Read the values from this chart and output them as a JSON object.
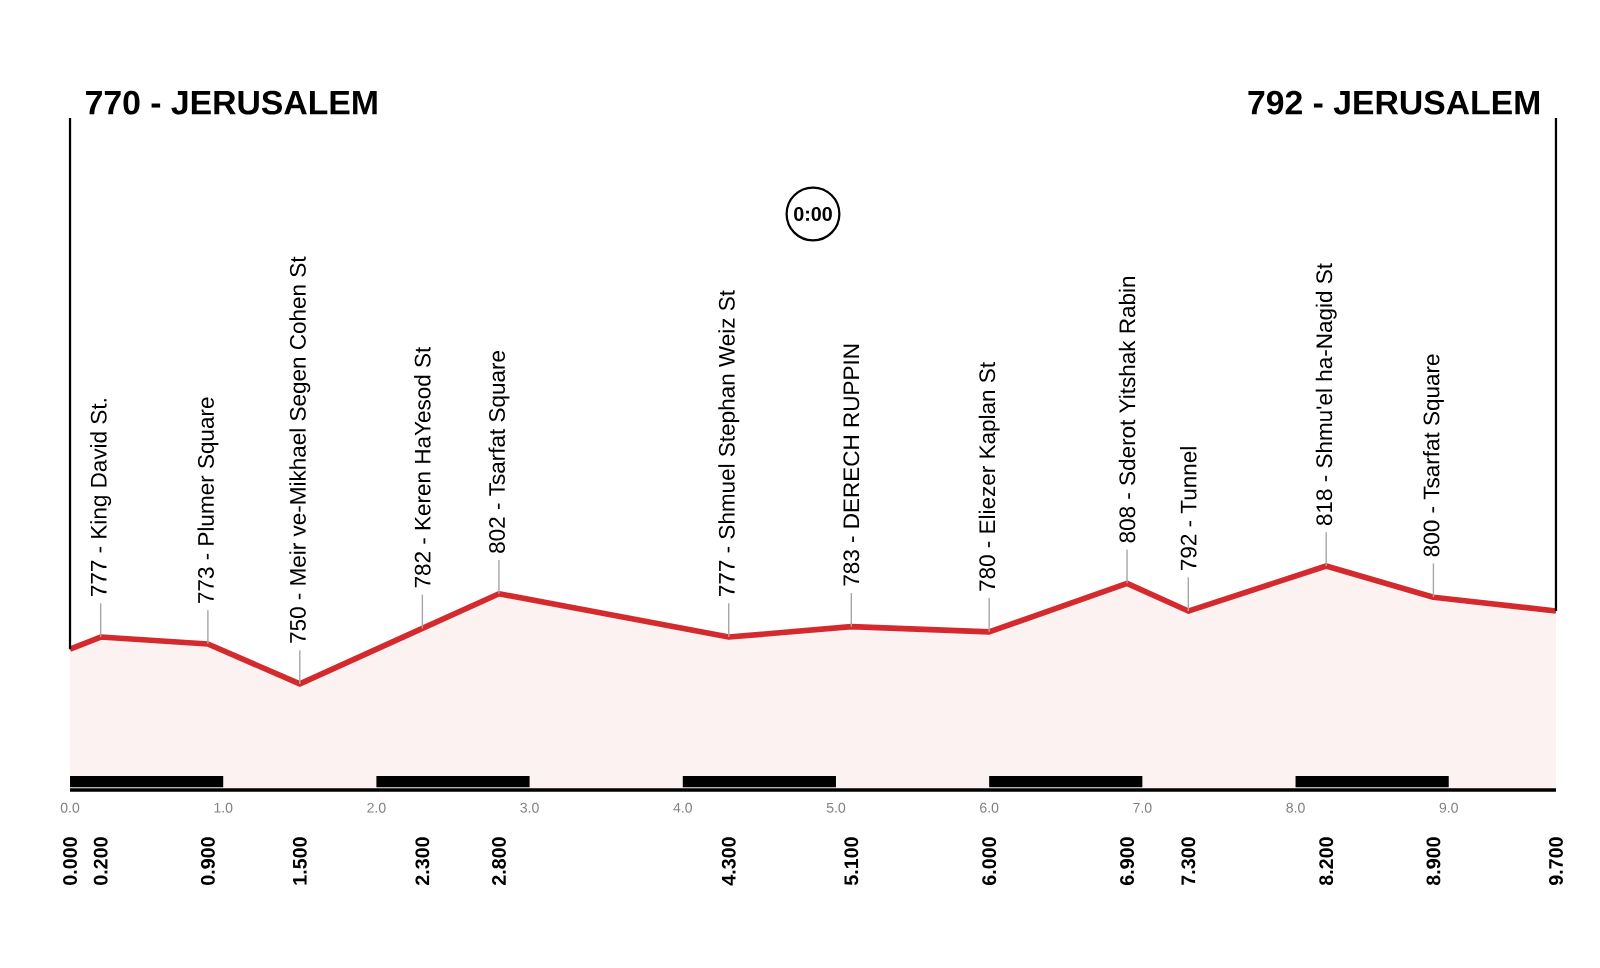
{
  "chart_data": {
    "type": "area",
    "x": [
      0,
      0.2,
      0.9,
      1.5,
      2.3,
      2.8,
      4.3,
      5.1,
      6.0,
      6.9,
      7.3,
      8.2,
      8.9,
      9.7
    ],
    "values": [
      770,
      777,
      773,
      750,
      782,
      802,
      777,
      783,
      780,
      808,
      792,
      818,
      800,
      792
    ],
    "value_labels": [
      "770 - JERUSALEM",
      "777 - King David St.",
      "773 - Plumer Square",
      "750 - Meir ve-Mikhael Segen Cohen St",
      "782 - Keren HaYesod St",
      "802 - Tsarfat Square",
      "777 - Shmuel Stephan Weiz St",
      "783 - DERECH RUPPIN",
      "780 - Eliezer Kaplan St",
      "808 - Sderot Yitshak Rabin",
      "792 - Tunnel",
      "818 - Shmu'el ha-Nagid St",
      "800 - Tsarfat Square",
      "792 - JERUSALEM"
    ],
    "color": "#d42a2e",
    "xlim": [
      0,
      9.7
    ],
    "x2lim": [
      0,
      9.7
    ],
    "xticks": [
      {
        "value": 0,
        "label": "0.000"
      },
      {
        "value": 0.2,
        "label": "0.200"
      },
      {
        "value": 0.9,
        "label": "0.900"
      },
      {
        "value": 1.5,
        "label": "1.500"
      },
      {
        "value": 2.3,
        "label": "2.300"
      },
      {
        "value": 2.8,
        "label": "2.800"
      },
      {
        "value": 4.3,
        "label": "4.300"
      },
      {
        "value": 5.1,
        "label": "5.100"
      },
      {
        "value": 6.0,
        "label": "6.000"
      },
      {
        "value": 6.9,
        "label": "6.900"
      },
      {
        "value": 7.3,
        "label": "7.300"
      },
      {
        "value": 8.2,
        "label": "8.200"
      },
      {
        "value": 8.9,
        "label": "8.900"
      },
      {
        "value": 9.7,
        "label": "9.700"
      }
    ],
    "x2ticks": [
      {
        "value": 0,
        "label": "0.0"
      },
      {
        "value": 1,
        "label": "1.0"
      },
      {
        "value": 2,
        "label": "2.0"
      },
      {
        "value": 3,
        "label": "3.0"
      },
      {
        "value": 4,
        "label": "4.0"
      },
      {
        "value": 5,
        "label": "5.0"
      },
      {
        "value": 6,
        "label": "6.0"
      },
      {
        "value": 7,
        "label": "7.0"
      },
      {
        "value": 8,
        "label": "8.0"
      },
      {
        "value": 9,
        "label": "9.0"
      }
    ],
    "tick_labels": "x",
    "annotations": [
      "0:00"
    ]
  }
}
